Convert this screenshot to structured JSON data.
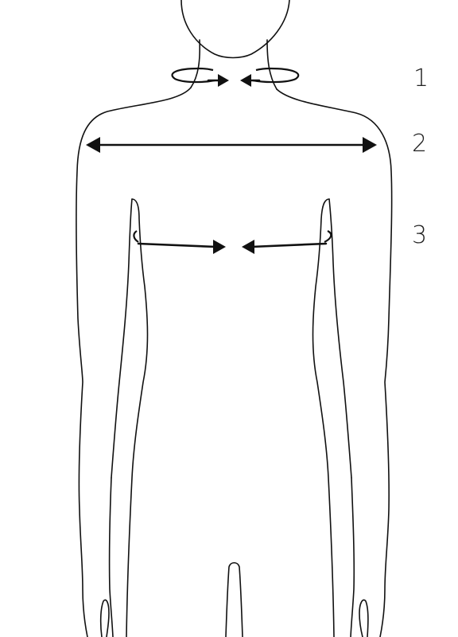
{
  "measurements": [
    {
      "number": "1",
      "name": "neck"
    },
    {
      "number": "2",
      "name": "shoulder width"
    },
    {
      "number": "3",
      "name": "chest"
    }
  ],
  "colors": {
    "line": "#111111",
    "label": "#222222",
    "background": "#ffffff"
  }
}
